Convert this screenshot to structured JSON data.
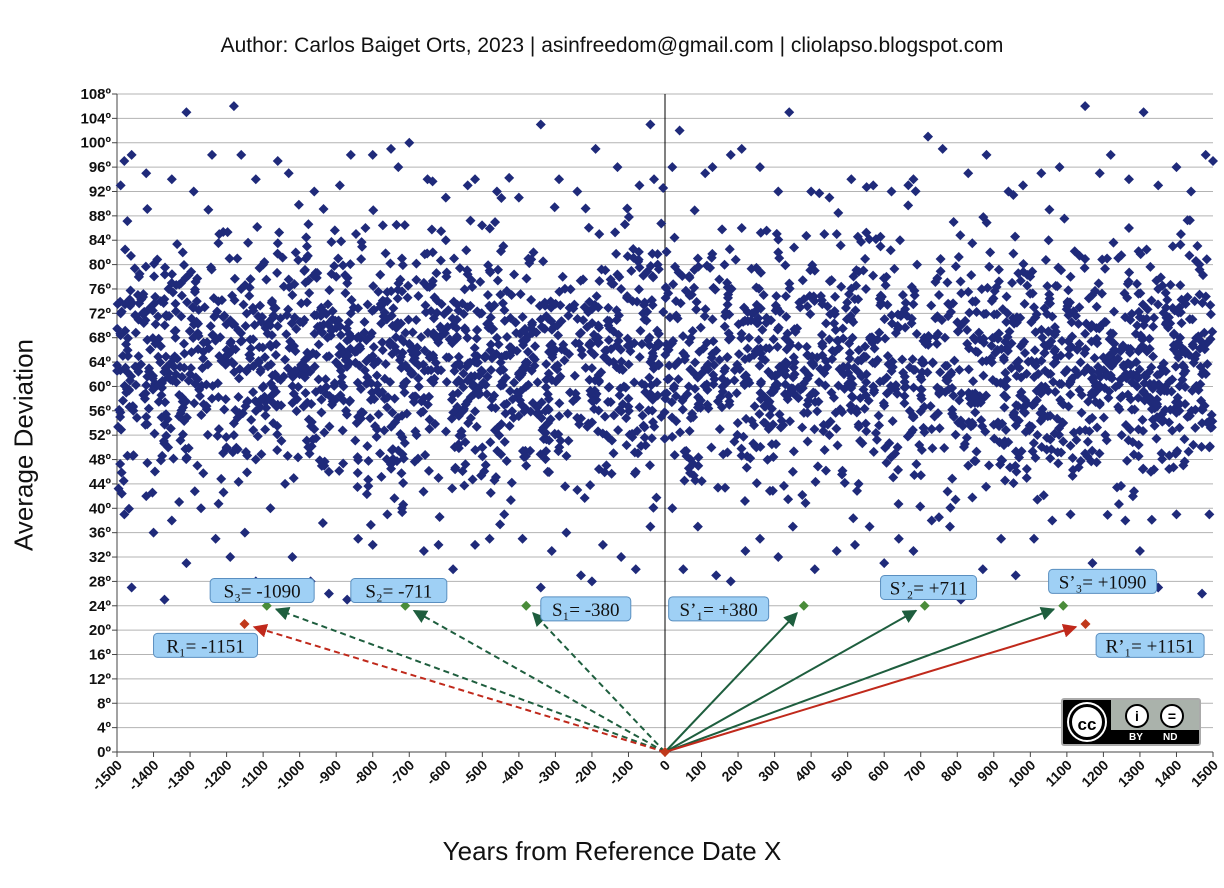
{
  "author": "Author: Carlos Baiget Orts, 2023 | asinfreedom@gmail.com | cliolapso.blogspot.com",
  "license_badge": {
    "cc": "cc",
    "by_label": "BY",
    "nd_label": "ND",
    "icons": [
      "cc-icon",
      "person-icon",
      "equals-icon"
    ]
  },
  "chart_data": {
    "type": "scatter",
    "title": "",
    "xlabel": "Years from Reference Date X",
    "ylabel": "Average Deviation",
    "xlim": [
      -1500,
      1500
    ],
    "ylim": [
      0,
      108
    ],
    "grid": true,
    "x_ticks": [
      "-1500",
      "-1400",
      "-1300",
      "-1200",
      "-1100",
      "-1000",
      "-900",
      "-800",
      "-700",
      "-600",
      "-500",
      "-400",
      "-300",
      "-200",
      "-100",
      "0",
      "100",
      "200",
      "300",
      "400",
      "500",
      "600",
      "700",
      "800",
      "900",
      "1000",
      "1100",
      "1200",
      "1300",
      "1400",
      "1500"
    ],
    "y_ticks": [
      "0º",
      "4º",
      "8º",
      "12º",
      "16º",
      "20º",
      "24º",
      "28º",
      "32º",
      "36º",
      "40º",
      "44º",
      "48º",
      "52º",
      "56º",
      "60º",
      "64º",
      "68º",
      "72º",
      "76º",
      "80º",
      "84º",
      "88º",
      "92º",
      "96º",
      "100º",
      "104º",
      "108º"
    ],
    "series": [
      {
        "name": "",
        "color": "#1f2a7a",
        "marker": "diamond",
        "count": 3000,
        "note_points_sampled": "",
        "points": [
          [
            -1490,
            93
          ],
          [
            -1480,
            97
          ],
          [
            -1460,
            98
          ],
          [
            -1420,
            95
          ],
          [
            -1350,
            94
          ],
          [
            -1310,
            105
          ],
          [
            -1290,
            92
          ],
          [
            -1250,
            89
          ],
          [
            -1240,
            98
          ],
          [
            -1180,
            106
          ],
          [
            -1160,
            98
          ],
          [
            -1120,
            94
          ],
          [
            -1060,
            97
          ],
          [
            -1030,
            95
          ],
          [
            -960,
            92
          ],
          [
            -890,
            93
          ],
          [
            -860,
            98
          ],
          [
            -800,
            98
          ],
          [
            -750,
            99
          ],
          [
            -730,
            96
          ],
          [
            -700,
            100
          ],
          [
            -650,
            94
          ],
          [
            -600,
            91
          ],
          [
            -540,
            93
          ],
          [
            -520,
            94
          ],
          [
            -460,
            92
          ],
          [
            -400,
            91
          ],
          [
            -340,
            103
          ],
          [
            -290,
            94
          ],
          [
            -240,
            92
          ],
          [
            -190,
            99
          ],
          [
            -130,
            96
          ],
          [
            -70,
            93
          ],
          [
            -40,
            103
          ],
          [
            -30,
            94
          ],
          [
            20,
            96
          ],
          [
            40,
            102
          ],
          [
            110,
            95
          ],
          [
            130,
            96
          ],
          [
            180,
            98
          ],
          [
            210,
            99
          ],
          [
            260,
            96
          ],
          [
            310,
            92
          ],
          [
            340,
            105
          ],
          [
            400,
            92
          ],
          [
            450,
            91
          ],
          [
            510,
            94
          ],
          [
            570,
            93
          ],
          [
            620,
            92
          ],
          [
            680,
            94
          ],
          [
            720,
            101
          ],
          [
            760,
            99
          ],
          [
            830,
            95
          ],
          [
            880,
            98
          ],
          [
            940,
            92
          ],
          [
            980,
            93
          ],
          [
            1030,
            95
          ],
          [
            1080,
            96
          ],
          [
            1150,
            106
          ],
          [
            1190,
            95
          ],
          [
            1220,
            98
          ],
          [
            1270,
            94
          ],
          [
            1310,
            105
          ],
          [
            1350,
            93
          ],
          [
            1400,
            96
          ],
          [
            1440,
            92
          ],
          [
            1480,
            98
          ],
          [
            1500,
            97
          ],
          [
            -1480,
            39
          ],
          [
            -1460,
            27
          ],
          [
            -1420,
            42
          ],
          [
            -1400,
            36
          ],
          [
            -1370,
            25
          ],
          [
            -1350,
            38
          ],
          [
            -1310,
            31
          ],
          [
            -1270,
            40
          ],
          [
            -1230,
            35
          ],
          [
            -1190,
            32
          ],
          [
            -1150,
            36
          ],
          [
            -1120,
            28
          ],
          [
            -1080,
            40
          ],
          [
            -1020,
            32
          ],
          [
            -970,
            28
          ],
          [
            -920,
            26
          ],
          [
            -870,
            25
          ],
          [
            -840,
            35
          ],
          [
            -800,
            34
          ],
          [
            -760,
            39
          ],
          [
            -720,
            40
          ],
          [
            -660,
            33
          ],
          [
            -620,
            34
          ],
          [
            -580,
            30
          ],
          [
            -520,
            34
          ],
          [
            -480,
            35
          ],
          [
            -440,
            39
          ],
          [
            -390,
            35
          ],
          [
            -340,
            27
          ],
          [
            -310,
            33
          ],
          [
            -270,
            36
          ],
          [
            -230,
            29
          ],
          [
            -200,
            28
          ],
          [
            -170,
            34
          ],
          [
            -120,
            32
          ],
          [
            -80,
            30
          ],
          [
            -40,
            37
          ],
          [
            20,
            40
          ],
          [
            50,
            30
          ],
          [
            90,
            37
          ],
          [
            140,
            29
          ],
          [
            180,
            28
          ],
          [
            220,
            33
          ],
          [
            260,
            35
          ],
          [
            310,
            32
          ],
          [
            350,
            37
          ],
          [
            410,
            30
          ],
          [
            470,
            33
          ],
          [
            520,
            34
          ],
          [
            560,
            37
          ],
          [
            600,
            31
          ],
          [
            640,
            35
          ],
          [
            680,
            33
          ],
          [
            730,
            38
          ],
          [
            780,
            37
          ],
          [
            810,
            25
          ],
          [
            870,
            30
          ],
          [
            920,
            35
          ],
          [
            960,
            29
          ],
          [
            1010,
            35
          ],
          [
            1060,
            38
          ],
          [
            1110,
            39
          ],
          [
            1170,
            31
          ],
          [
            1210,
            28
          ],
          [
            1260,
            38
          ],
          [
            1300,
            33
          ],
          [
            1350,
            27
          ],
          [
            1400,
            39
          ],
          [
            1470,
            26
          ],
          [
            1490,
            39
          ],
          [
            -1490,
            72
          ],
          [
            -1470,
            65
          ],
          [
            -1440,
            78
          ],
          [
            -1420,
            55
          ],
          [
            -1400,
            60
          ],
          [
            -1380,
            74
          ],
          [
            -1360,
            50
          ],
          [
            -1340,
            68
          ],
          [
            -1320,
            82
          ],
          [
            -1300,
            62
          ],
          [
            -1280,
            47
          ],
          [
            -1260,
            73
          ],
          [
            -1240,
            58
          ],
          [
            -1220,
            85
          ],
          [
            -1200,
            66
          ],
          [
            -1180,
            52
          ],
          [
            -1160,
            76
          ],
          [
            -1140,
            63
          ],
          [
            -1120,
            48
          ],
          [
            -1100,
            80
          ],
          [
            -1080,
            70
          ],
          [
            -1060,
            57
          ],
          [
            -1040,
            44
          ],
          [
            -1020,
            75
          ],
          [
            -1000,
            62
          ],
          [
            -980,
            83
          ],
          [
            -960,
            53
          ],
          [
            -940,
            69
          ],
          [
            -920,
            46
          ],
          [
            -900,
            78
          ],
          [
            -880,
            60
          ],
          [
            -860,
            72
          ],
          [
            -840,
            55
          ],
          [
            -820,
            86
          ],
          [
            -800,
            65
          ],
          [
            -780,
            49
          ],
          [
            -760,
            74
          ],
          [
            -740,
            58
          ],
          [
            -720,
            81
          ],
          [
            -700,
            67
          ],
          [
            -680,
            52
          ],
          [
            -660,
            77
          ],
          [
            -640,
            61
          ],
          [
            -620,
            45
          ],
          [
            -600,
            84
          ],
          [
            -580,
            70
          ],
          [
            -560,
            56
          ],
          [
            -540,
            73
          ],
          [
            -520,
            64
          ],
          [
            -500,
            50
          ],
          [
            -480,
            79
          ],
          [
            -460,
            68
          ],
          [
            -440,
            57
          ],
          [
            -420,
            75
          ],
          [
            -400,
            62
          ],
          [
            -380,
            47
          ],
          [
            -360,
            82
          ],
          [
            -340,
            71
          ],
          [
            -320,
            54
          ],
          [
            -300,
            66
          ],
          [
            -280,
            78
          ],
          [
            -260,
            59
          ],
          [
            -240,
            43
          ],
          [
            -220,
            73
          ],
          [
            -200,
            63
          ],
          [
            -180,
            85
          ],
          [
            -160,
            52
          ],
          [
            -140,
            69
          ],
          [
            -120,
            76
          ],
          [
            -100,
            58
          ],
          [
            -80,
            46
          ],
          [
            -60,
            72
          ],
          [
            -40,
            64
          ],
          [
            -20,
            80
          ],
          [
            -10,
            55
          ],
          [
            10,
            66
          ],
          [
            30,
            74
          ],
          [
            50,
            58
          ],
          [
            70,
            48
          ],
          [
            90,
            81
          ],
          [
            110,
            63
          ],
          [
            130,
            71
          ],
          [
            150,
            53
          ],
          [
            170,
            77
          ],
          [
            190,
            61
          ],
          [
            210,
            86
          ],
          [
            230,
            68
          ],
          [
            250,
            50
          ],
          [
            270,
            75
          ],
          [
            290,
            59
          ],
          [
            310,
            82
          ],
          [
            330,
            64
          ],
          [
            350,
            46
          ],
          [
            370,
            73
          ],
          [
            390,
            57
          ],
          [
            410,
            79
          ],
          [
            430,
            67
          ],
          [
            450,
            52
          ],
          [
            470,
            85
          ],
          [
            490,
            62
          ],
          [
            510,
            71
          ],
          [
            530,
            44
          ],
          [
            550,
            76
          ],
          [
            570,
            60
          ],
          [
            590,
            83
          ],
          [
            610,
            65
          ],
          [
            630,
            49
          ],
          [
            650,
            72
          ],
          [
            670,
            56
          ],
          [
            690,
            80
          ],
          [
            710,
            68
          ],
          [
            730,
            53
          ],
          [
            750,
            75
          ],
          [
            770,
            61
          ],
          [
            790,
            87
          ],
          [
            810,
            70
          ],
          [
            830,
            47
          ],
          [
            850,
            74
          ],
          [
            870,
            58
          ],
          [
            890,
            82
          ],
          [
            910,
            66
          ],
          [
            930,
            51
          ],
          [
            950,
            77
          ],
          [
            970,
            63
          ],
          [
            990,
            45
          ],
          [
            1010,
            73
          ],
          [
            1030,
            59
          ],
          [
            1050,
            84
          ],
          [
            1070,
            69
          ],
          [
            1090,
            54
          ],
          [
            1110,
            78
          ],
          [
            1130,
            62
          ],
          [
            1150,
            49
          ],
          [
            1170,
            75
          ],
          [
            1190,
            57
          ],
          [
            1210,
            81
          ],
          [
            1230,
            67
          ],
          [
            1250,
            52
          ],
          [
            1270,
            86
          ],
          [
            1290,
            64
          ],
          [
            1310,
            71
          ],
          [
            1330,
            46
          ],
          [
            1350,
            76
          ],
          [
            1370,
            60
          ],
          [
            1390,
            83
          ],
          [
            1410,
            68
          ],
          [
            1430,
            55
          ],
          [
            1450,
            74
          ],
          [
            1470,
            62
          ],
          [
            1490,
            50
          ]
        ]
      }
    ],
    "annotations": [
      {
        "label": "S₃= -1090",
        "x": -1090,
        "y": 24,
        "color": "#4a8c3a",
        "arrow_style": "dashed",
        "arrow_color": "#1e5e3e"
      },
      {
        "label": "S₂= -711",
        "x": -711,
        "y": 24,
        "color": "#4a8c3a",
        "arrow_style": "dashed",
        "arrow_color": "#1e5e3e"
      },
      {
        "label": "S₁= -380",
        "x": -380,
        "y": 24,
        "color": "#4a8c3a",
        "arrow_style": "dashed",
        "arrow_color": "#1e5e3e"
      },
      {
        "label": "R₁= -1151",
        "x": -1151,
        "y": 21,
        "color": "#c0391b",
        "arrow_style": "dashed",
        "arrow_color": "#c0291b"
      },
      {
        "label": "S’₁= +380",
        "x": 380,
        "y": 24,
        "color": "#4a8c3a",
        "arrow_style": "solid",
        "arrow_color": "#1e5e3e"
      },
      {
        "label": "S’₂= +711",
        "x": 711,
        "y": 24,
        "color": "#4a8c3a",
        "arrow_style": "solid",
        "arrow_color": "#1e5e3e"
      },
      {
        "label": "S’₃= +1090",
        "x": 1090,
        "y": 24,
        "color": "#4a8c3a",
        "arrow_style": "solid",
        "arrow_color": "#1e5e3e"
      },
      {
        "label": "R’₁= +1151",
        "x": 1151,
        "y": 21,
        "color": "#c0391b",
        "arrow_style": "solid",
        "arrow_color": "#c0291b"
      }
    ],
    "origin_point": {
      "x": 0,
      "y": 0,
      "color": "#c0391b"
    }
  }
}
